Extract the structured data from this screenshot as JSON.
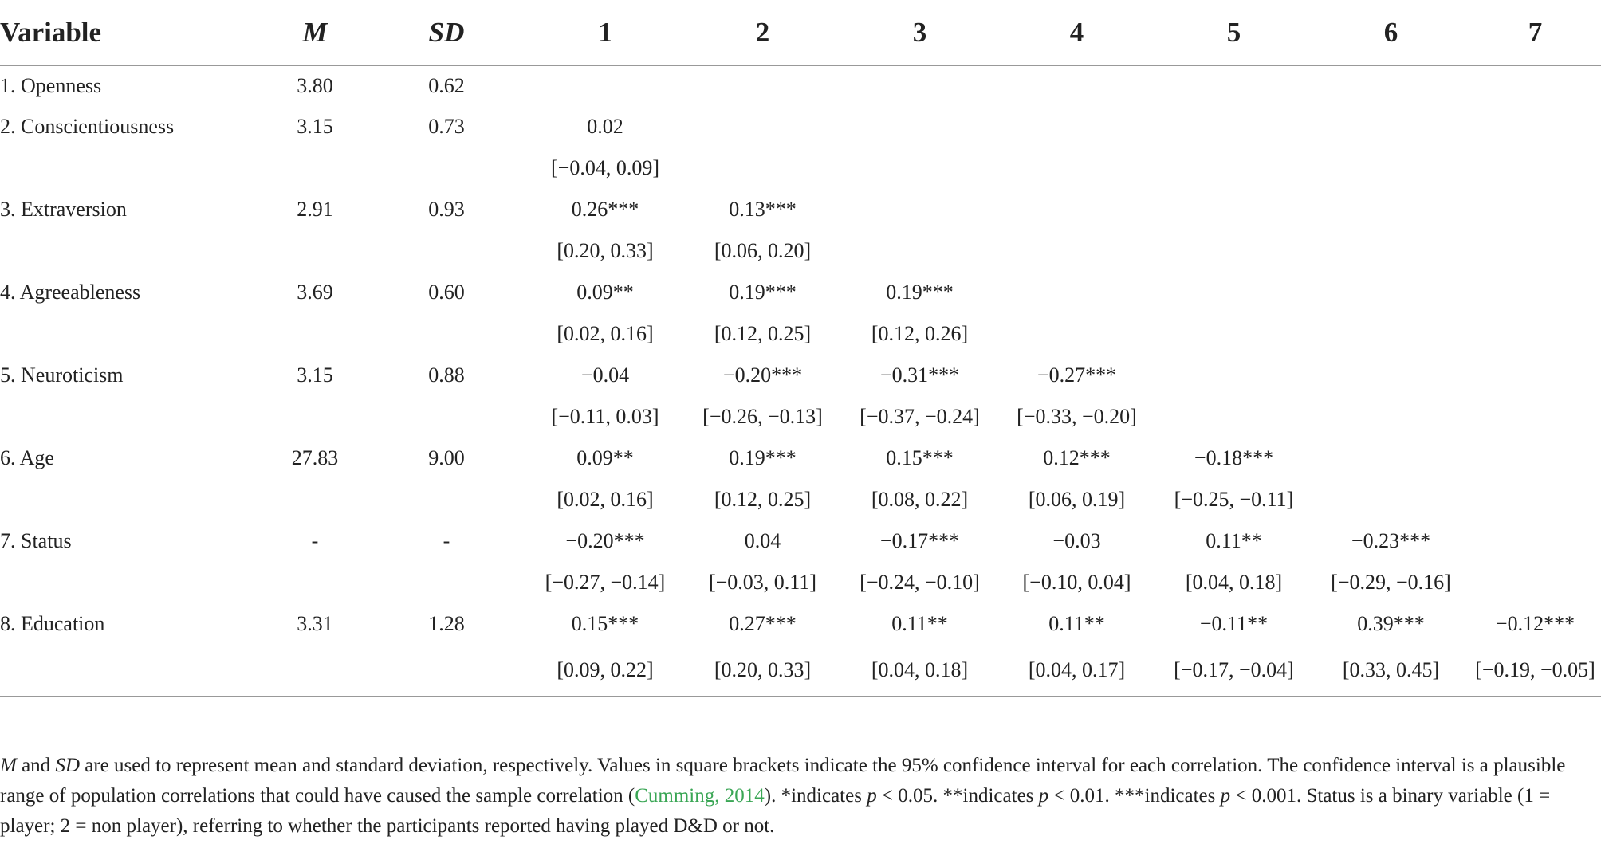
{
  "table": {
    "headers": [
      "Variable",
      "M",
      "SD",
      "1",
      "2",
      "3",
      "4",
      "5",
      "6",
      "7"
    ],
    "rows": [
      {
        "variable": "1. Openness",
        "m": "3.80",
        "sd": "0.62",
        "r": [
          "",
          "",
          "",
          "",
          "",
          "",
          ""
        ],
        "ci": [
          "",
          "",
          "",
          "",
          "",
          "",
          ""
        ]
      },
      {
        "variable": "2. Conscientiousness",
        "m": "3.15",
        "sd": "0.73",
        "r": [
          "0.02",
          "",
          "",
          "",
          "",
          "",
          ""
        ],
        "ci": [
          "[−0.04, 0.09]",
          "",
          "",
          "",
          "",
          "",
          ""
        ]
      },
      {
        "variable": "3. Extraversion",
        "m": "2.91",
        "sd": "0.93",
        "r": [
          "0.26***",
          "0.13***",
          "",
          "",
          "",
          "",
          ""
        ],
        "ci": [
          "[0.20, 0.33]",
          "[0.06, 0.20]",
          "",
          "",
          "",
          "",
          ""
        ]
      },
      {
        "variable": "4. Agreeableness",
        "m": "3.69",
        "sd": "0.60",
        "r": [
          "0.09**",
          "0.19***",
          "0.19***",
          "",
          "",
          "",
          ""
        ],
        "ci": [
          "[0.02, 0.16]",
          "[0.12, 0.25]",
          "[0.12, 0.26]",
          "",
          "",
          "",
          ""
        ]
      },
      {
        "variable": "5. Neuroticism",
        "m": "3.15",
        "sd": "0.88",
        "r": [
          "−0.04",
          "−0.20***",
          "−0.31***",
          "−0.27***",
          "",
          "",
          ""
        ],
        "ci": [
          "[−0.11, 0.03]",
          "[−0.26, −0.13]",
          "[−0.37, −0.24]",
          "[−0.33, −0.20]",
          "",
          "",
          ""
        ]
      },
      {
        "variable": "6. Age",
        "m": "27.83",
        "sd": "9.00",
        "r": [
          "0.09**",
          "0.19***",
          "0.15***",
          "0.12***",
          "−0.18***",
          "",
          ""
        ],
        "ci": [
          "[0.02, 0.16]",
          "[0.12, 0.25]",
          "[0.08, 0.22]",
          "[0.06, 0.19]",
          "[−0.25, −0.11]",
          "",
          ""
        ]
      },
      {
        "variable": "7. Status",
        "m": "-",
        "sd": "-",
        "r": [
          "−0.20***",
          "0.04",
          "−0.17***",
          "−0.03",
          "0.11**",
          "−0.23***",
          ""
        ],
        "ci": [
          "[−0.27, −0.14]",
          "[−0.03, 0.11]",
          "[−0.24, −0.10]",
          "[−0.10, 0.04]",
          "[0.04, 0.18]",
          "[−0.29, −0.16]",
          ""
        ]
      },
      {
        "variable": "8. Education",
        "m": "3.31",
        "sd": "1.28",
        "r": [
          "0.15***",
          "0.27***",
          "0.11**",
          "0.11**",
          "−0.11**",
          "0.39***",
          "−0.12***"
        ],
        "ci": [
          "[0.09, 0.22]",
          "[0.20, 0.33]",
          "[0.04, 0.18]",
          "[0.04, 0.17]",
          "[−0.17, −0.04]",
          "[0.33, 0.45]",
          "[−0.19, −0.05]"
        ]
      }
    ]
  },
  "note": {
    "m_letter": "M",
    "and_text": " and ",
    "sd_letters": "SD",
    "part1": " are used to represent mean and standard deviation, respectively. Values in square brackets indicate the 95% confidence interval for each correlation. The confidence interval is a plausible range of population correlations that could have caused the sample correlation (",
    "citation": "Cumming, 2014",
    "part2": "). *indicates ",
    "p1": "p",
    "t1": " < 0.05. **indicates ",
    "p2": "p",
    "t2": " < 0.01. ***indicates ",
    "p3": "p",
    "t3": " < 0.001. Status is a binary variable (1 = player; 2 = non player), referring to whether the participants reported having played D&D or not."
  }
}
